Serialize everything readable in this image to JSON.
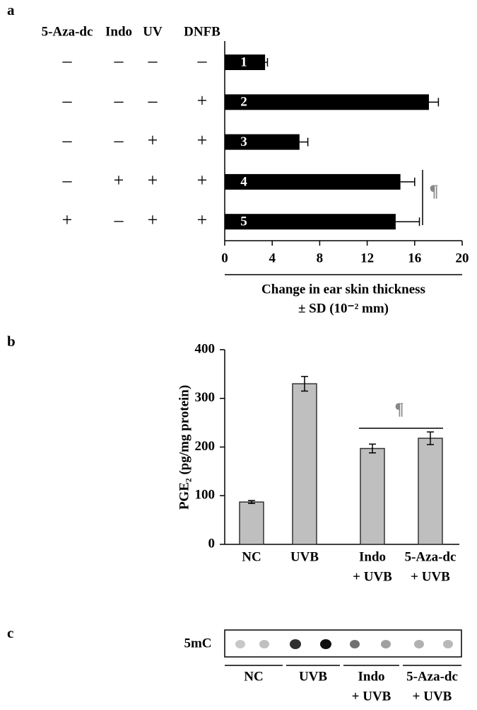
{
  "panels": [
    "a",
    "b",
    "c"
  ],
  "chart_data": [
    {
      "type": "bar",
      "orientation": "horizontal",
      "treatment_columns": [
        "5-Aza-dc",
        "Indo",
        "UV",
        "DNFB"
      ],
      "treatment_rows": [
        [
          "–",
          "–",
          "–",
          "–"
        ],
        [
          "–",
          "–",
          "–",
          "+"
        ],
        [
          "–",
          "–",
          "+",
          "+"
        ],
        [
          "–",
          "+",
          "+",
          "+"
        ],
        [
          "+",
          "–",
          "+",
          "+"
        ]
      ],
      "categories": [
        "1",
        "2",
        "3",
        "4",
        "5"
      ],
      "values": [
        3.4,
        17.2,
        6.3,
        14.8,
        14.4
      ],
      "errors": [
        0.2,
        0.8,
        0.7,
        1.2,
        2.0
      ],
      "color": "#000000",
      "xlim": [
        0,
        20
      ],
      "xticks": [
        0,
        4,
        8,
        12,
        16,
        20
      ],
      "xlabel": [
        "Change in ear skin thickness",
        "± SD (10⁻² mm)"
      ],
      "annotation": "¶"
    },
    {
      "type": "bar",
      "orientation": "vertical",
      "categories": [
        [
          "NC"
        ],
        [
          "UVB"
        ],
        [
          "Indo",
          "+ UVB"
        ],
        [
          "5-Aza-dc",
          "+ UVB"
        ]
      ],
      "values": [
        87,
        330,
        197,
        218
      ],
      "errors": [
        3,
        15,
        9,
        13
      ],
      "color": "#bfbfbf",
      "ylim": [
        0,
        400
      ],
      "yticks": [
        0,
        100,
        200,
        300,
        400
      ],
      "ylabel": "PGE₂ (pg/mg protein)",
      "annotation": "¶"
    }
  ],
  "blot": {
    "label": "5mC",
    "groups": [
      [
        "NC"
      ],
      [
        "UVB"
      ],
      [
        "Indo",
        "+ UVB"
      ],
      [
        "5-Aza-dc",
        "+ UVB"
      ]
    ]
  }
}
